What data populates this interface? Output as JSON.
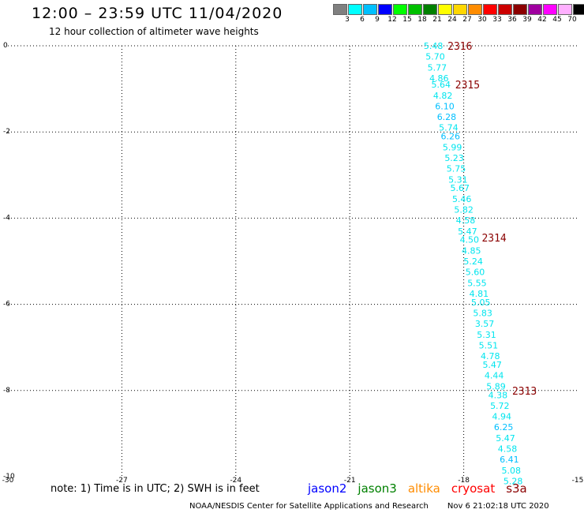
{
  "header": {
    "title": "12:00 – 23:59 UTC 11/04/2020",
    "subtitle": "12 hour collection of altimeter wave heights"
  },
  "legend": {
    "unit": "(ft)",
    "bins": [
      {
        "label": "3",
        "color": "#808080"
      },
      {
        "label": "6",
        "color": "#00ffff"
      },
      {
        "label": "9",
        "color": "#00c0ff"
      },
      {
        "label": "12",
        "color": "#0000ff"
      },
      {
        "label": "15",
        "color": "#00ff00"
      },
      {
        "label": "18",
        "color": "#00c000"
      },
      {
        "label": "21",
        "color": "#008000"
      },
      {
        "label": "24",
        "color": "#ffff00"
      },
      {
        "label": "27",
        "color": "#ffd700"
      },
      {
        "label": "30",
        "color": "#ff8c00"
      },
      {
        "label": "33",
        "color": "#ff0000"
      },
      {
        "label": "36",
        "color": "#cc0000"
      },
      {
        "label": "39",
        "color": "#8b0000"
      },
      {
        "label": "42",
        "color": "#a000a0"
      },
      {
        "label": "45",
        "color": "#ff00ff"
      },
      {
        "label": "70",
        "color": "#ffb0ff"
      },
      {
        "label": "",
        "color": "#000000"
      }
    ]
  },
  "chart_data": {
    "type": "scatter",
    "xlim": [
      -30,
      -15
    ],
    "ylim": [
      -10,
      0
    ],
    "x_ticks": [
      "-30",
      "-27",
      "-24",
      "-21",
      "-18",
      "-15"
    ],
    "y_ticks": [
      "0",
      "-2",
      "-4",
      "-6",
      "-8",
      "-10"
    ],
    "grid": true,
    "points": [
      {
        "x": -18.8,
        "y": 0.0,
        "label": "5.48",
        "color": "#00e5ee"
      },
      {
        "x": -18.75,
        "y": -0.25,
        "label": "5.70",
        "color": "#00e5ee"
      },
      {
        "x": -18.7,
        "y": -0.5,
        "label": "5.77",
        "color": "#00e5ee"
      },
      {
        "x": -18.65,
        "y": -0.75,
        "label": "4.86",
        "color": "#00e5ee"
      },
      {
        "x": -18.6,
        "y": -0.9,
        "label": "5.64",
        "color": "#00e5ee"
      },
      {
        "x": -18.55,
        "y": -1.15,
        "label": "4.82",
        "color": "#00e5ee"
      },
      {
        "x": -18.5,
        "y": -1.4,
        "label": "6.10",
        "color": "#00bfff"
      },
      {
        "x": -18.45,
        "y": -1.65,
        "label": "6.28",
        "color": "#00bfff"
      },
      {
        "x": -18.4,
        "y": -1.9,
        "label": "5.74",
        "color": "#00e5ee"
      },
      {
        "x": -18.35,
        "y": -2.1,
        "label": "6.26",
        "color": "#00bfff"
      },
      {
        "x": -18.3,
        "y": -2.35,
        "label": "5.99",
        "color": "#00e5ee"
      },
      {
        "x": -18.25,
        "y": -2.6,
        "label": "5.23",
        "color": "#00e5ee"
      },
      {
        "x": -18.2,
        "y": -2.85,
        "label": "5.75",
        "color": "#00e5ee"
      },
      {
        "x": -18.15,
        "y": -3.1,
        "label": "5.31",
        "color": "#00e5ee"
      },
      {
        "x": -18.1,
        "y": -3.3,
        "label": "5.67",
        "color": "#00e5ee"
      },
      {
        "x": -18.05,
        "y": -3.55,
        "label": "5.46",
        "color": "#00e5ee"
      },
      {
        "x": -18.0,
        "y": -3.8,
        "label": "5.82",
        "color": "#00e5ee"
      },
      {
        "x": -17.95,
        "y": -4.05,
        "label": "4.58",
        "color": "#00e5ee"
      },
      {
        "x": -17.9,
        "y": -4.3,
        "label": "5.47",
        "color": "#00e5ee"
      },
      {
        "x": -17.85,
        "y": -4.5,
        "label": "4.50",
        "color": "#00e5ee"
      },
      {
        "x": -17.8,
        "y": -4.75,
        "label": "4.85",
        "color": "#00e5ee"
      },
      {
        "x": -17.75,
        "y": -5.0,
        "label": "5.24",
        "color": "#00e5ee"
      },
      {
        "x": -17.7,
        "y": -5.25,
        "label": "5.60",
        "color": "#00e5ee"
      },
      {
        "x": -17.65,
        "y": -5.5,
        "label": "5.55",
        "color": "#00e5ee"
      },
      {
        "x": -17.6,
        "y": -5.75,
        "label": "4.81",
        "color": "#00e5ee"
      },
      {
        "x": -17.55,
        "y": -5.95,
        "label": "5.05",
        "color": "#00e5ee"
      },
      {
        "x": -17.5,
        "y": -6.2,
        "label": "5.83",
        "color": "#00e5ee"
      },
      {
        "x": -17.45,
        "y": -6.45,
        "label": "3.57",
        "color": "#00e5ee"
      },
      {
        "x": -17.4,
        "y": -6.7,
        "label": "5.31",
        "color": "#00e5ee"
      },
      {
        "x": -17.35,
        "y": -6.95,
        "label": "5.51",
        "color": "#00e5ee"
      },
      {
        "x": -17.3,
        "y": -7.2,
        "label": "4.78",
        "color": "#00e5ee"
      },
      {
        "x": -17.25,
        "y": -7.4,
        "label": "5.47",
        "color": "#00e5ee"
      },
      {
        "x": -17.2,
        "y": -7.65,
        "label": "4.44",
        "color": "#00e5ee"
      },
      {
        "x": -17.15,
        "y": -7.9,
        "label": "5.89",
        "color": "#00e5ee"
      },
      {
        "x": -17.1,
        "y": -8.1,
        "label": "4.38",
        "color": "#00e5ee"
      },
      {
        "x": -17.05,
        "y": -8.35,
        "label": "5.72",
        "color": "#00e5ee"
      },
      {
        "x": -17.0,
        "y": -8.6,
        "label": "4.94",
        "color": "#00e5ee"
      },
      {
        "x": -16.95,
        "y": -8.85,
        "label": "6.25",
        "color": "#00bfff"
      },
      {
        "x": -16.9,
        "y": -9.1,
        "label": "5.47",
        "color": "#00e5ee"
      },
      {
        "x": -16.85,
        "y": -9.35,
        "label": "4.58",
        "color": "#00e5ee"
      },
      {
        "x": -16.8,
        "y": -9.6,
        "label": "6.41",
        "color": "#00bfff"
      },
      {
        "x": -16.75,
        "y": -9.85,
        "label": "5.08",
        "color": "#00e5ee"
      },
      {
        "x": -16.7,
        "y": -10.1,
        "label": "5.28",
        "color": "#00e5ee"
      }
    ],
    "time_labels": [
      {
        "x": -18.1,
        "y": 0.0,
        "label": "2316"
      },
      {
        "x": -17.9,
        "y": -0.9,
        "label": "2315"
      },
      {
        "x": -17.2,
        "y": -4.45,
        "label": "2314"
      },
      {
        "x": -16.4,
        "y": -8.0,
        "label": "2313"
      }
    ]
  },
  "footer": {
    "note": "note:  1) Time is in UTC; 2) SWH is in feet",
    "satellites": [
      {
        "name": "jason2",
        "color": "#0000ff"
      },
      {
        "name": "jason3",
        "color": "#008000"
      },
      {
        "name": "altika",
        "color": "#ff8c00"
      },
      {
        "name": "cryosat",
        "color": "#ff0000"
      },
      {
        "name": "s3a",
        "color": "#8b0000"
      }
    ],
    "credit": "NOAA/NESDIS Center for Satellite Applications and Research",
    "timestamp": "Nov  6 21:02:18 UTC 2020"
  }
}
